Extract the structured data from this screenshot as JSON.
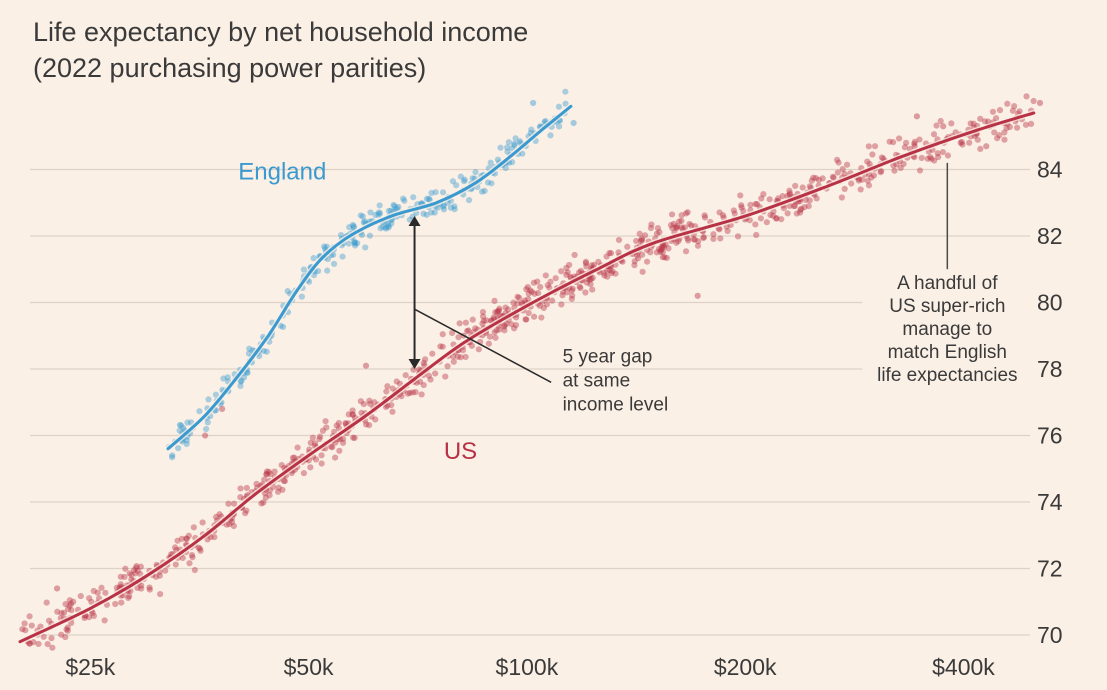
{
  "chart_data": {
    "type": "scatter",
    "title": "Life expectancy by net household income",
    "subtitle": "(2022 purchasing power parities)",
    "xlabel": "",
    "ylabel": "",
    "x_scale": "log",
    "xlim": [
      20000,
      510000
    ],
    "ylim": [
      69.7,
      86.0
    ],
    "x_ticks": [
      {
        "value": 25000,
        "label": "$25k"
      },
      {
        "value": 50000,
        "label": "$50k"
      },
      {
        "value": 100000,
        "label": "$100k"
      },
      {
        "value": 200000,
        "label": "$200k"
      },
      {
        "value": 400000,
        "label": "$400k"
      }
    ],
    "y_ticks": [
      {
        "value": 70,
        "label": "70"
      },
      {
        "value": 72,
        "label": "72"
      },
      {
        "value": 74,
        "label": "74"
      },
      {
        "value": 76,
        "label": "76"
      },
      {
        "value": 78,
        "label": "78"
      },
      {
        "value": 80,
        "label": "80"
      },
      {
        "value": 82,
        "label": "82"
      },
      {
        "value": 84,
        "label": "84"
      }
    ],
    "grid": "horizontal",
    "y_axis_position": "right",
    "series": [
      {
        "name": "England",
        "color": "#3a9ad0",
        "trend": [
          {
            "x": 32000,
            "y": 75.6
          },
          {
            "x": 36000,
            "y": 76.6
          },
          {
            "x": 40000,
            "y": 77.8
          },
          {
            "x": 44000,
            "y": 79.0
          },
          {
            "x": 48000,
            "y": 80.3
          },
          {
            "x": 52000,
            "y": 81.3
          },
          {
            "x": 57000,
            "y": 82.0
          },
          {
            "x": 65000,
            "y": 82.6
          },
          {
            "x": 75000,
            "y": 83.0
          },
          {
            "x": 85000,
            "y": 83.6
          },
          {
            "x": 95000,
            "y": 84.4
          },
          {
            "x": 105000,
            "y": 85.2
          },
          {
            "x": 115000,
            "y": 85.9
          }
        ],
        "scatter_spread": 0.3,
        "scatter_count": 300,
        "outliers": [
          {
            "x": 102000,
            "y": 86.0
          },
          {
            "x": 116000,
            "y": 85.4
          }
        ]
      },
      {
        "name": "US",
        "color": "#b83246",
        "trend": [
          {
            "x": 20000,
            "y": 69.8
          },
          {
            "x": 25000,
            "y": 70.8
          },
          {
            "x": 30000,
            "y": 71.8
          },
          {
            "x": 36000,
            "y": 73.0
          },
          {
            "x": 42000,
            "y": 74.2
          },
          {
            "x": 50000,
            "y": 75.4
          },
          {
            "x": 60000,
            "y": 76.6
          },
          {
            "x": 70000,
            "y": 77.7
          },
          {
            "x": 82000,
            "y": 78.8
          },
          {
            "x": 100000,
            "y": 79.9
          },
          {
            "x": 125000,
            "y": 81.0
          },
          {
            "x": 150000,
            "y": 81.8
          },
          {
            "x": 200000,
            "y": 82.6
          },
          {
            "x": 260000,
            "y": 83.5
          },
          {
            "x": 330000,
            "y": 84.4
          },
          {
            "x": 420000,
            "y": 85.2
          },
          {
            "x": 500000,
            "y": 85.7
          }
        ],
        "scatter_spread": 0.4,
        "scatter_count": 900,
        "outliers": [
          {
            "x": 22500,
            "y": 71.4
          },
          {
            "x": 38000,
            "y": 76.8
          },
          {
            "x": 36000,
            "y": 76.0
          },
          {
            "x": 60000,
            "y": 78.1
          },
          {
            "x": 172000,
            "y": 80.2
          },
          {
            "x": 345000,
            "y": 85.6
          },
          {
            "x": 375000,
            "y": 85.3
          },
          {
            "x": 430000,
            "y": 84.7
          },
          {
            "x": 510000,
            "y": 86.0
          }
        ]
      }
    ],
    "series_labels": [
      {
        "series": "England",
        "text": "England",
        "x": 46000,
        "y": 83.7
      },
      {
        "series": "US",
        "text": "US",
        "x": 81000,
        "y": 75.3
      }
    ],
    "annotations": [
      {
        "id": "gap",
        "lines": [
          "5 year gap",
          "at same",
          "income level"
        ],
        "text_x": 112000,
        "text_y": 78.2,
        "arrow_x": 70000,
        "arrow_y_top": 82.6,
        "arrow_y_bottom": 78.0,
        "leader_from_y": 79.8,
        "leader_to_x": 108000,
        "leader_to_y": 77.6
      },
      {
        "id": "super-rich",
        "lines": [
          "A handful of",
          "US super-rich",
          "manage to",
          "match English",
          "life expectancies"
        ],
        "text_x": 300000,
        "text_y": 80.4,
        "leader_x": 380000,
        "leader_y_top": 84.2,
        "leader_y_bottom": 80.9
      }
    ]
  }
}
